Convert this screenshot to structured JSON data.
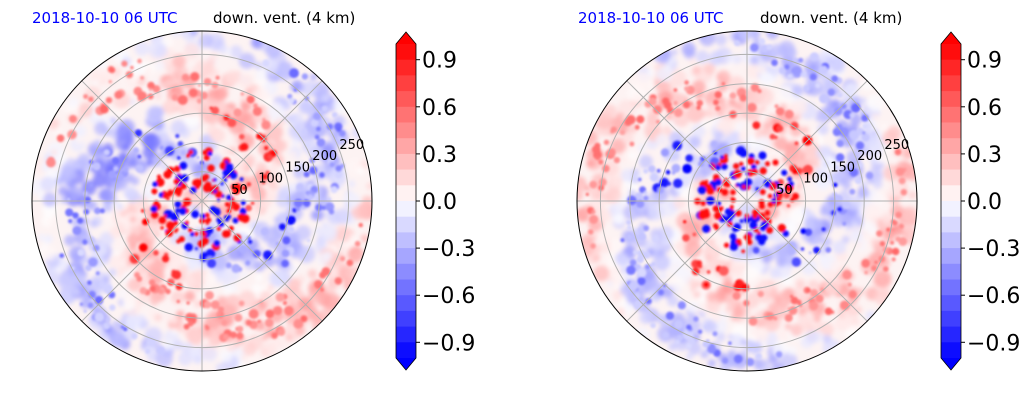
{
  "figure": {
    "panels": [
      {
        "title_time": "2018-10-10 06 UTC",
        "title_var": "down. vent. (4 km)"
      },
      {
        "title_time": "2018-10-10 06 UTC",
        "title_var": "down. vent. (4 km)"
      }
    ]
  },
  "chart_data": [
    {
      "type": "heatmap",
      "projection": "polar",
      "title": "2018-10-10 06 UTC",
      "subtitle": "down. vent. (4 km)",
      "radial_ticks": [
        "50",
        "100",
        "150",
        "200",
        "250"
      ],
      "radial_values": [
        50,
        100,
        150,
        200,
        250
      ],
      "rlim": [
        0,
        290
      ],
      "angular_grid_deg": [
        0,
        45,
        90,
        135,
        180,
        225,
        270,
        315
      ],
      "grid": true,
      "colorbar": {
        "ticks": [
          "0.9",
          "0.6",
          "0.3",
          "0.0",
          "−0.3",
          "−0.6",
          "−0.9"
        ],
        "tick_values": [
          0.9,
          0.6,
          0.3,
          0.0,
          -0.3,
          -0.6,
          -0.9
        ],
        "range": [
          -1.0,
          1.0
        ],
        "extend": "both",
        "colormap": "bwr"
      },
      "colors": {
        "positive": "#ff0000",
        "negative": "#0000ff",
        "zero": "#ffffff"
      }
    },
    {
      "type": "heatmap",
      "projection": "polar",
      "title": "2018-10-10 06 UTC",
      "subtitle": "down. vent. (4 km)",
      "radial_ticks": [
        "50",
        "100",
        "150",
        "200",
        "250"
      ],
      "radial_values": [
        50,
        100,
        150,
        200,
        250
      ],
      "rlim": [
        0,
        290
      ],
      "angular_grid_deg": [
        0,
        45,
        90,
        135,
        180,
        225,
        270,
        315
      ],
      "grid": true,
      "colorbar": {
        "ticks": [
          "0.9",
          "0.6",
          "0.3",
          "0.0",
          "−0.3",
          "−0.6",
          "−0.9"
        ],
        "tick_values": [
          0.9,
          0.6,
          0.3,
          0.0,
          -0.3,
          -0.6,
          -0.9
        ],
        "range": [
          -1.0,
          1.0
        ],
        "extend": "both",
        "colormap": "bwr"
      },
      "colors": {
        "positive": "#ff0000",
        "negative": "#0000ff",
        "zero": "#ffffff"
      }
    }
  ]
}
